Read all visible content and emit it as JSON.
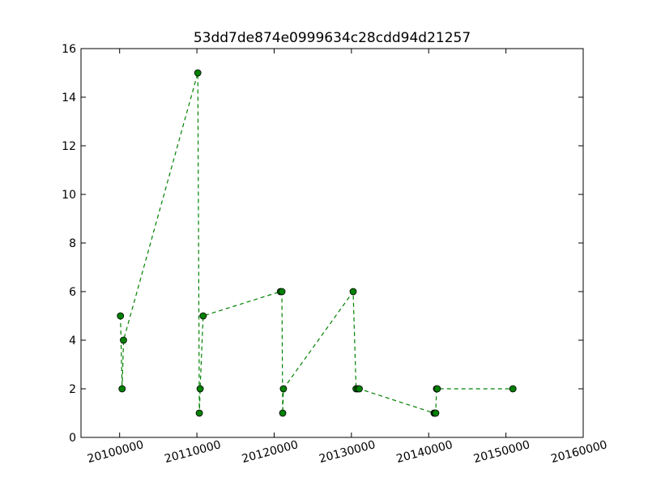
{
  "chart_data": {
    "type": "line",
    "title": "53dd7de874e0999634c28cdd94d21257",
    "xlabel": "",
    "ylabel": "",
    "xlim": [
      20095000,
      20160000
    ],
    "ylim": [
      0,
      16
    ],
    "x_ticks": [
      20100000,
      20110000,
      20120000,
      20130000,
      20140000,
      20150000,
      20160000
    ],
    "x_tick_labels": [
      "20100000",
      "20110000",
      "20120000",
      "20130000",
      "20140000",
      "20150000",
      "20160000"
    ],
    "y_ticks": [
      0,
      2,
      4,
      6,
      8,
      10,
      12,
      14,
      16
    ],
    "y_tick_labels": [
      "0",
      "2",
      "4",
      "6",
      "8",
      "10",
      "12",
      "14",
      "16"
    ],
    "grid": false,
    "line_style": "dashed",
    "marker": "circle",
    "color": "#008000",
    "series": [
      {
        "x": [
          20100107,
          20100322,
          20100500,
          20110115,
          20110315,
          20110420,
          20110810,
          20120810,
          20121001,
          20121108,
          20121201,
          20130226,
          20130601,
          20130828,
          20131012,
          20140701,
          20140801,
          20140912,
          20141020,
          20141112,
          20150901
        ],
        "y": [
          5,
          2,
          4,
          15,
          1,
          2,
          5,
          6,
          6,
          1,
          2,
          6,
          2,
          2,
          2,
          1,
          1,
          1,
          2,
          2,
          2
        ]
      }
    ]
  }
}
